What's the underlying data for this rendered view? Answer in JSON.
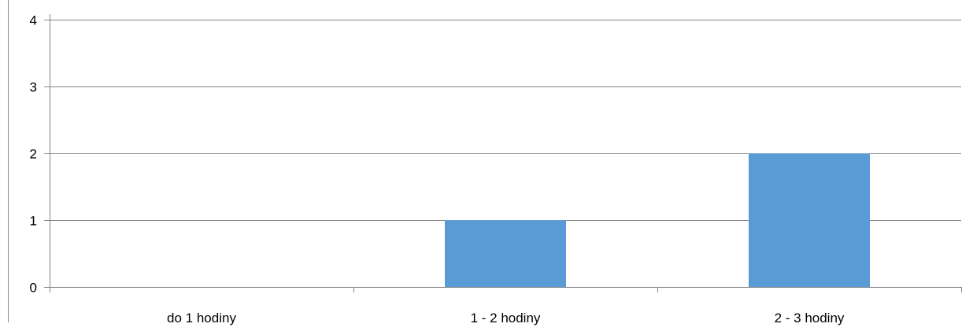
{
  "chart_data": {
    "type": "bar",
    "categories": [
      "do 1 hodiny",
      "1 - 2 hodiny",
      "2 - 3 hodiny"
    ],
    "values": [
      0,
      1,
      2
    ],
    "yticks": [
      "0",
      "1",
      "2",
      "3",
      "4"
    ],
    "ylim": [
      0,
      4
    ],
    "grid": true,
    "title": "",
    "xlabel": "",
    "ylabel": "",
    "colors": {
      "bar": "#5b9bd5",
      "grid": "#868686",
      "axis": "#868686",
      "frame": "#868686"
    }
  }
}
